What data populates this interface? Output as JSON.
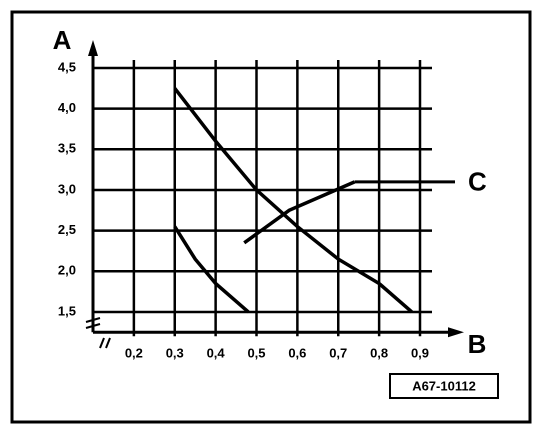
{
  "chart_data": {
    "type": "line",
    "xlabel": "B",
    "ylabel": "A",
    "figure_code": "A67-10112",
    "xlim": [
      0.1,
      0.9
    ],
    "ylim": [
      1.25,
      4.5
    ],
    "xticks": [
      {
        "value": 0.2,
        "label": "0,2"
      },
      {
        "value": 0.3,
        "label": "0,3"
      },
      {
        "value": 0.4,
        "label": "0,4"
      },
      {
        "value": 0.5,
        "label": "0,5"
      },
      {
        "value": 0.6,
        "label": "0,6"
      },
      {
        "value": 0.7,
        "label": "0,7"
      },
      {
        "value": 0.8,
        "label": "0,8"
      },
      {
        "value": 0.9,
        "label": "0,9"
      }
    ],
    "yticks": [
      {
        "value": 1.5,
        "label": "1,5"
      },
      {
        "value": 2.0,
        "label": "2,0"
      },
      {
        "value": 2.5,
        "label": "2,5"
      },
      {
        "value": 3.0,
        "label": "3,0"
      },
      {
        "value": 3.5,
        "label": "3,5"
      },
      {
        "value": 4.0,
        "label": "4,0"
      },
      {
        "value": 4.5,
        "label": "4,5"
      }
    ],
    "grid": true,
    "color": "#000000",
    "series": [
      {
        "x": [
          0.3,
          0.4,
          0.5,
          0.6,
          0.7,
          0.8,
          0.88
        ],
        "values": [
          4.25,
          3.6,
          3.0,
          2.55,
          2.15,
          1.85,
          1.5
        ]
      },
      {
        "x": [
          0.3,
          0.35,
          0.4,
          0.48
        ],
        "values": [
          2.55,
          2.15,
          1.85,
          1.5
        ]
      },
      {
        "name": "C",
        "x": [
          0.47,
          0.58,
          0.74
        ],
        "values": [
          2.35,
          2.75,
          3.1
        ]
      }
    ]
  }
}
